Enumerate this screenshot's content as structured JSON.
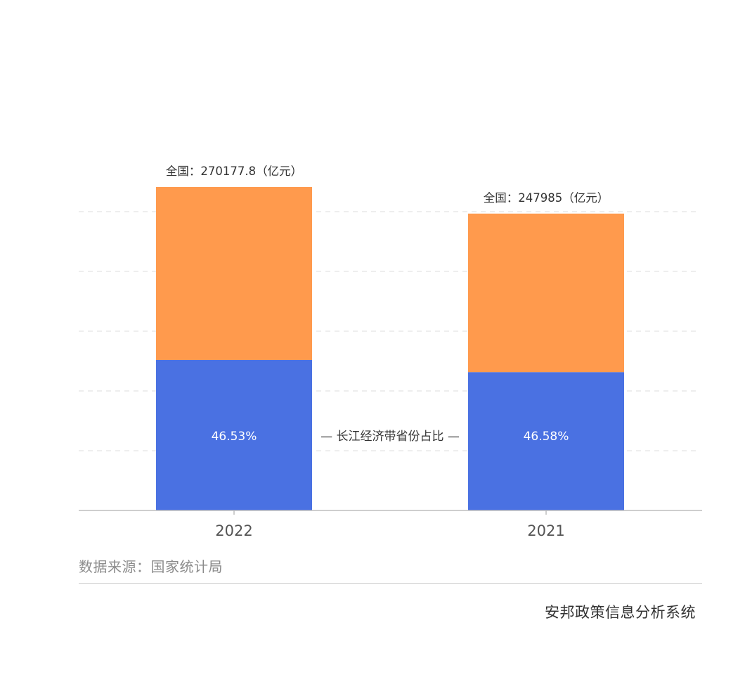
{
  "chart_data": {
    "type": "bar",
    "stacked": true,
    "categories": [
      "2022",
      "2021"
    ],
    "totals": [
      270177.8,
      247985
    ],
    "total_labels": [
      "全国：270177.8（亿元）",
      "全国：247985（亿元）"
    ],
    "share_percent": [
      46.53,
      46.58
    ],
    "share_labels": [
      "46.53%",
      "46.58%"
    ],
    "series_label": "— 长江经济带省份占比 —",
    "colors": {
      "share": "#4a71e2",
      "rest": "#ff9a4d",
      "grid": "#e3e3e3",
      "axis": "#bdbdbd"
    },
    "ylim": [
      0,
      270177.8
    ],
    "grid": true,
    "y_ticks_shown": false
  },
  "source_text": "数据来源：国家统计局",
  "brand_text": "安邦政策信息分析系统"
}
